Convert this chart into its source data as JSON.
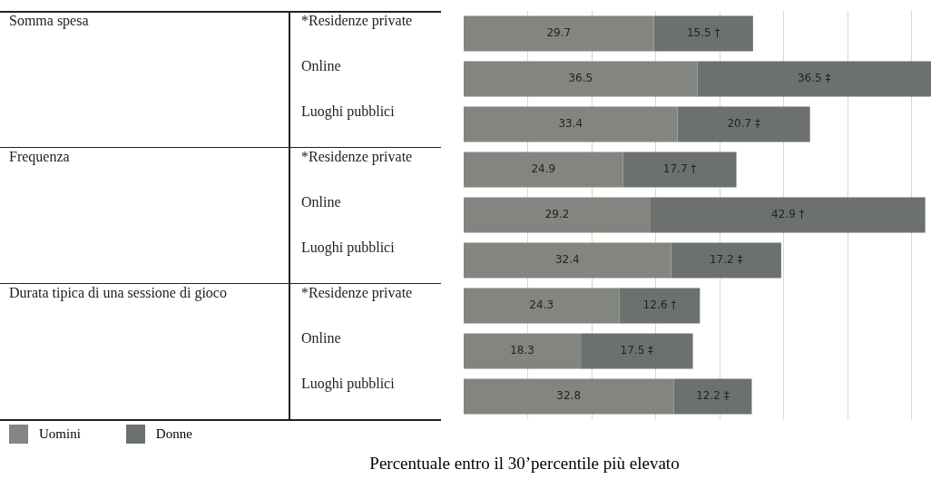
{
  "chart_data": {
    "type": "bar",
    "orientation": "horizontal",
    "stacked": true,
    "categories": [
      "*Residenze private",
      "Online",
      "Luoghi pubblici",
      "*Residenze private",
      "Online",
      "Luoghi pubblici",
      "*Residenze private",
      "Online",
      "Luoghi pubblici"
    ],
    "series": [
      {
        "name": "Uomini",
        "color": "#838680",
        "values": [
          29.7,
          36.5,
          33.4,
          24.9,
          29.2,
          32.4,
          24.3,
          18.3,
          32.8
        ],
        "value_labels": [
          "29.7",
          "36.5",
          "33.4",
          "24.9",
          "29.2",
          "32.4",
          "24.3",
          "18.3",
          "32.8"
        ]
      },
      {
        "name": "Donne",
        "color": "#6c7170",
        "values": [
          15.5,
          36.5,
          20.7,
          17.7,
          42.9,
          17.2,
          12.6,
          17.5,
          12.2
        ],
        "value_labels": [
          "15.5 †",
          "36.5 ‡",
          "20.7 ‡",
          "17.7 †",
          "42.9 †",
          "17.2 ‡",
          "12.6 †",
          "17.5 ‡",
          "12.2 ‡"
        ]
      }
    ],
    "annotations": [
      "Somma spesa",
      "Frequenza",
      "Durata tipica di una sessione di gioco"
    ],
    "xlabel": "Percentuale entro il 30’percentile più elevato",
    "xlim": [
      0,
      73
    ],
    "xticks": [
      {
        "value": 10,
        "label": null
      },
      {
        "value": 20,
        "label": null
      },
      {
        "value": 30,
        "label": null
      },
      {
        "value": 40,
        "label": null
      },
      {
        "value": 50,
        "label": null
      },
      {
        "value": 60,
        "label": null
      },
      {
        "value": 70,
        "label": null
      }
    ],
    "grid": "x",
    "tick_labels": "y",
    "legend": "bottom left"
  }
}
